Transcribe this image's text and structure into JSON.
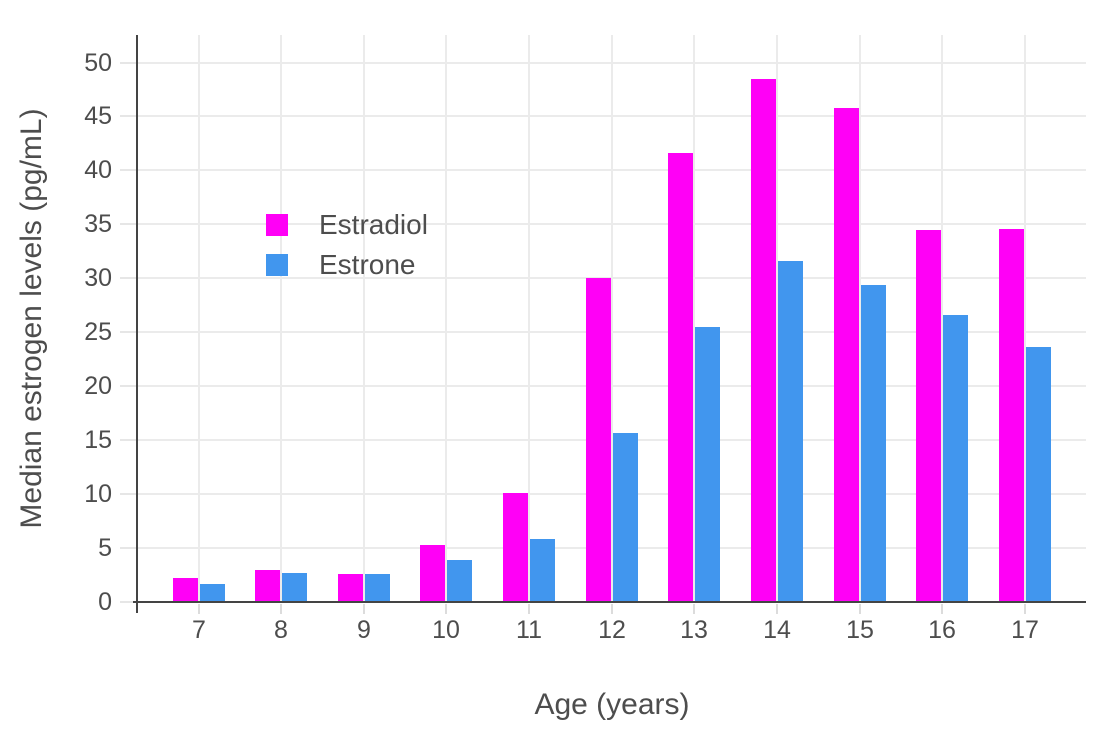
{
  "chart_data": {
    "type": "bar",
    "title": "",
    "xlabel": "Age (years)",
    "ylabel": "Median estrogen levels (pg/mL)",
    "categories": [
      "7",
      "8",
      "9",
      "10",
      "11",
      "12",
      "13",
      "14",
      "15",
      "16",
      "17"
    ],
    "series": [
      {
        "name": "Estradiol",
        "color": "#ff00f6",
        "values": [
          2.2,
          3.0,
          2.6,
          5.3,
          10.1,
          30.0,
          41.6,
          48.5,
          45.8,
          34.5,
          34.6
        ]
      },
      {
        "name": "Estrone",
        "color": "#4196ee",
        "values": [
          1.7,
          2.7,
          2.6,
          3.9,
          5.8,
          15.7,
          25.5,
          31.6,
          29.4,
          26.6,
          23.6
        ]
      }
    ],
    "ylim": [
      0,
      52.5
    ],
    "yticks": [
      0,
      5,
      10,
      15,
      20,
      25,
      30,
      35,
      40,
      45,
      50
    ],
    "grid": true,
    "legend_position": "inside-top-left",
    "colors": {
      "axis_line": "#444444",
      "gridline": "#ebebeb",
      "text": "#4d4d4d",
      "background": "#ffffff"
    }
  }
}
